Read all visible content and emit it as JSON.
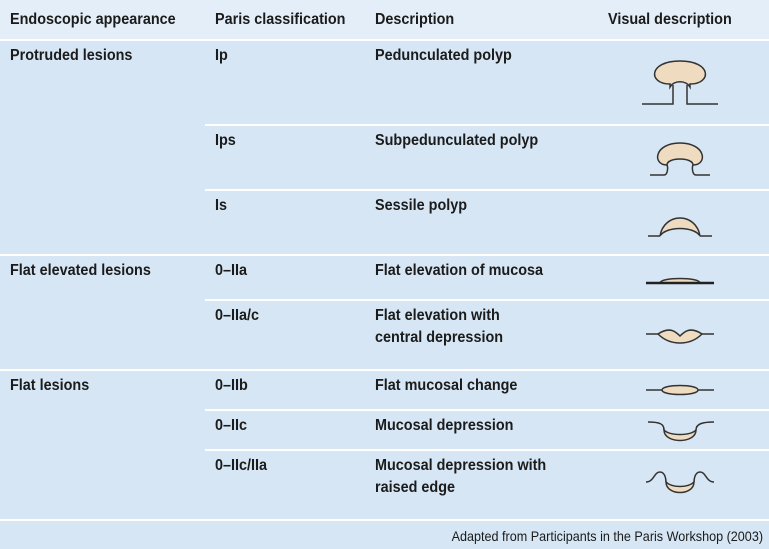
{
  "table": {
    "header": [
      "Endoscopic appearance",
      "Paris classification",
      "Description",
      "Visual description"
    ],
    "groups": [
      {
        "label": "Protruded lesions",
        "rows": [
          {
            "paris": "Ip",
            "description": [
              "Pedunculated polyp"
            ]
          },
          {
            "paris": "Ips",
            "description": [
              "Subpedunculated polyp"
            ]
          },
          {
            "paris": "Is",
            "description": [
              "Sessile polyp"
            ]
          }
        ]
      },
      {
        "label": "Flat elevated lesions",
        "rows": [
          {
            "paris": "0–IIa",
            "description": [
              "Flat elevation of mucosa"
            ]
          },
          {
            "paris": "0–IIa/c",
            "description": [
              "Flat elevation with",
              "central depression"
            ]
          }
        ]
      },
      {
        "label": "Flat lesions",
        "rows": [
          {
            "paris": "0–IIb",
            "description": [
              "Flat mucosal change"
            ]
          },
          {
            "paris": "0–IIc",
            "description": [
              "Mucosal depression"
            ]
          },
          {
            "paris": "0–IIc/IIa",
            "description": [
              "Mucosal depression with",
              "raised edge"
            ]
          }
        ]
      }
    ],
    "footer": "Adapted from Participants in the Paris Workshop (2003)"
  }
}
